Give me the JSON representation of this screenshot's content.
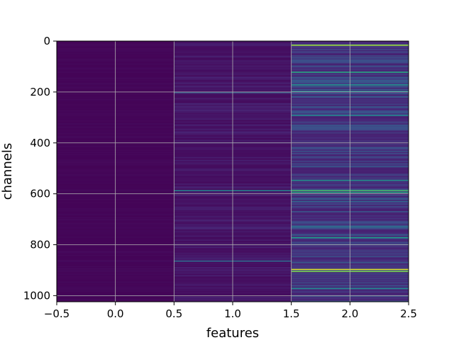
{
  "chart_data": {
    "type": "heatmap",
    "title": "",
    "xlabel": "features",
    "ylabel": "channels",
    "xlim": [
      -0.5,
      2.5
    ],
    "ylim": [
      1024,
      0
    ],
    "y_inverted": true,
    "grid": true,
    "colormap": "viridis",
    "n_rows": 1024,
    "columns": [
      0,
      1,
      2
    ],
    "column_mean_intensity": [
      0.02,
      0.08,
      0.22
    ],
    "x_ticks": [
      -0.5,
      0.0,
      0.5,
      1.0,
      1.5,
      2.0,
      2.5
    ],
    "x_tick_labels": [
      "−0.5",
      "0.0",
      "0.5",
      "1.0",
      "1.5",
      "2.0",
      "2.5"
    ],
    "y_ticks": [
      0,
      200,
      400,
      600,
      800,
      1000
    ],
    "y_tick_labels": [
      "0",
      "200",
      "400",
      "600",
      "800",
      "1000"
    ],
    "bright_bands": [
      {
        "column": 2,
        "channel": 14,
        "intensity": 0.85
      },
      {
        "column": 2,
        "channel": 120,
        "intensity": 0.6
      },
      {
        "column": 2,
        "channel": 170,
        "intensity": 0.5
      },
      {
        "column": 2,
        "channel": 195,
        "intensity": 0.45
      },
      {
        "column": 2,
        "channel": 290,
        "intensity": 0.45
      },
      {
        "column": 2,
        "channel": 545,
        "intensity": 0.5
      },
      {
        "column": 2,
        "channel": 585,
        "intensity": 0.7
      },
      {
        "column": 2,
        "channel": 592,
        "intensity": 0.6
      },
      {
        "column": 2,
        "channel": 770,
        "intensity": 0.55
      },
      {
        "column": 2,
        "channel": 895,
        "intensity": 0.95
      },
      {
        "column": 2,
        "channel": 903,
        "intensity": 0.8
      },
      {
        "column": 2,
        "channel": 970,
        "intensity": 0.45
      },
      {
        "column": 1,
        "channel": 585,
        "intensity": 0.45
      },
      {
        "column": 1,
        "channel": 862,
        "intensity": 0.35
      },
      {
        "column": 1,
        "channel": 200,
        "intensity": 0.3
      }
    ]
  }
}
